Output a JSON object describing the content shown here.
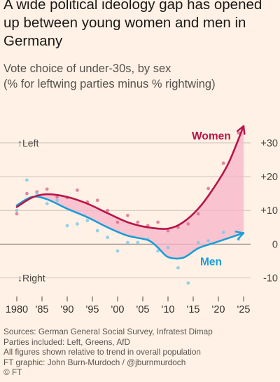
{
  "title": "A wide political ideology gap has opened up between young women and men in Germany",
  "subtitle_line1": "Vote choice of under-30s, by sex",
  "subtitle_line2": "(% for leftwing parties minus % rightwing)",
  "footer": {
    "sources": "Sources: German General Social Survey, Infratest Dimap",
    "parties": "Parties included: Left, Greens, AfD",
    "note": "All figures shown relative to trend in overall population",
    "credit": "FT graphic: John Burn-Murdoch / @jburnmurdoch",
    "copyright": "© FT"
  },
  "colors": {
    "women": "#b8154a",
    "men": "#1a9fd6",
    "gap_fill": "#f7b4c8",
    "background": "#fff1e5",
    "grid": "#ccc2ba"
  },
  "chart_data": {
    "type": "line",
    "x_tick_labels": [
      "1980",
      "'85",
      "'90",
      "'95",
      "'00",
      "'05",
      "'10",
      "'15",
      "'20",
      "'25"
    ],
    "x_ticks": [
      1980,
      1985,
      1990,
      1995,
      2000,
      2005,
      2010,
      2015,
      2020,
      2025
    ],
    "xlim": [
      1980,
      2025
    ],
    "ylim": [
      -13,
      36
    ],
    "y_ticks": [
      30,
      20,
      10,
      0,
      -10
    ],
    "y_tick_labels": [
      "+30",
      "+20",
      "+10",
      "0",
      "-10"
    ],
    "direction_labels": {
      "up": "↑Left",
      "down": "↓Right"
    },
    "grid": true,
    "series": [
      {
        "name": "Women",
        "trend_x": [
          1980,
          1983,
          1986,
          1990,
          1994,
          1998,
          2002,
          2006,
          2010,
          2013,
          2016,
          2019,
          2022,
          2025
        ],
        "trend_y": [
          11,
          13.8,
          14.8,
          14,
          12,
          9.2,
          6.5,
          5,
          4.6,
          6.5,
          10.5,
          16.5,
          24,
          35
        ],
        "points_x": [
          1980,
          1982,
          1984,
          1986,
          1988,
          1990,
          1992,
          1994,
          1996,
          1998,
          2000,
          2002,
          2004,
          2006,
          2008,
          2010,
          2012,
          2014,
          2016,
          2018,
          2021,
          2024
        ],
        "points_y": [
          9,
          15,
          15.5,
          16.3,
          14,
          13.8,
          16,
          12.5,
          13,
          10,
          6.5,
          8.5,
          6.5,
          5.5,
          6.5,
          4,
          5,
          6,
          9,
          16.5,
          24,
          33
        ]
      },
      {
        "name": "Men",
        "trend_x": [
          1980,
          1983,
          1986,
          1990,
          1994,
          1998,
          2002,
          2006,
          2008,
          2010,
          2013,
          2016,
          2019,
          2022,
          2025
        ],
        "trend_y": [
          11.5,
          14,
          13.3,
          10.5,
          8,
          5,
          2.5,
          1.2,
          -1,
          -3.8,
          -4,
          -1.2,
          0.3,
          1.8,
          3.3
        ],
        "points_x": [
          1980,
          1982,
          1984,
          1986,
          1988,
          1990,
          1992,
          1994,
          1996,
          1998,
          2000,
          2002,
          2004,
          2006,
          2008,
          2010,
          2012,
          2014,
          2016,
          2018,
          2021,
          2024
        ],
        "points_y": [
          10,
          19,
          15,
          12,
          13,
          5.5,
          6,
          7,
          4,
          2,
          -2,
          0.5,
          0.5,
          1.5,
          -2,
          -1,
          -7,
          -11.5,
          0.5,
          1,
          3.5,
          1.5
        ]
      }
    ]
  }
}
